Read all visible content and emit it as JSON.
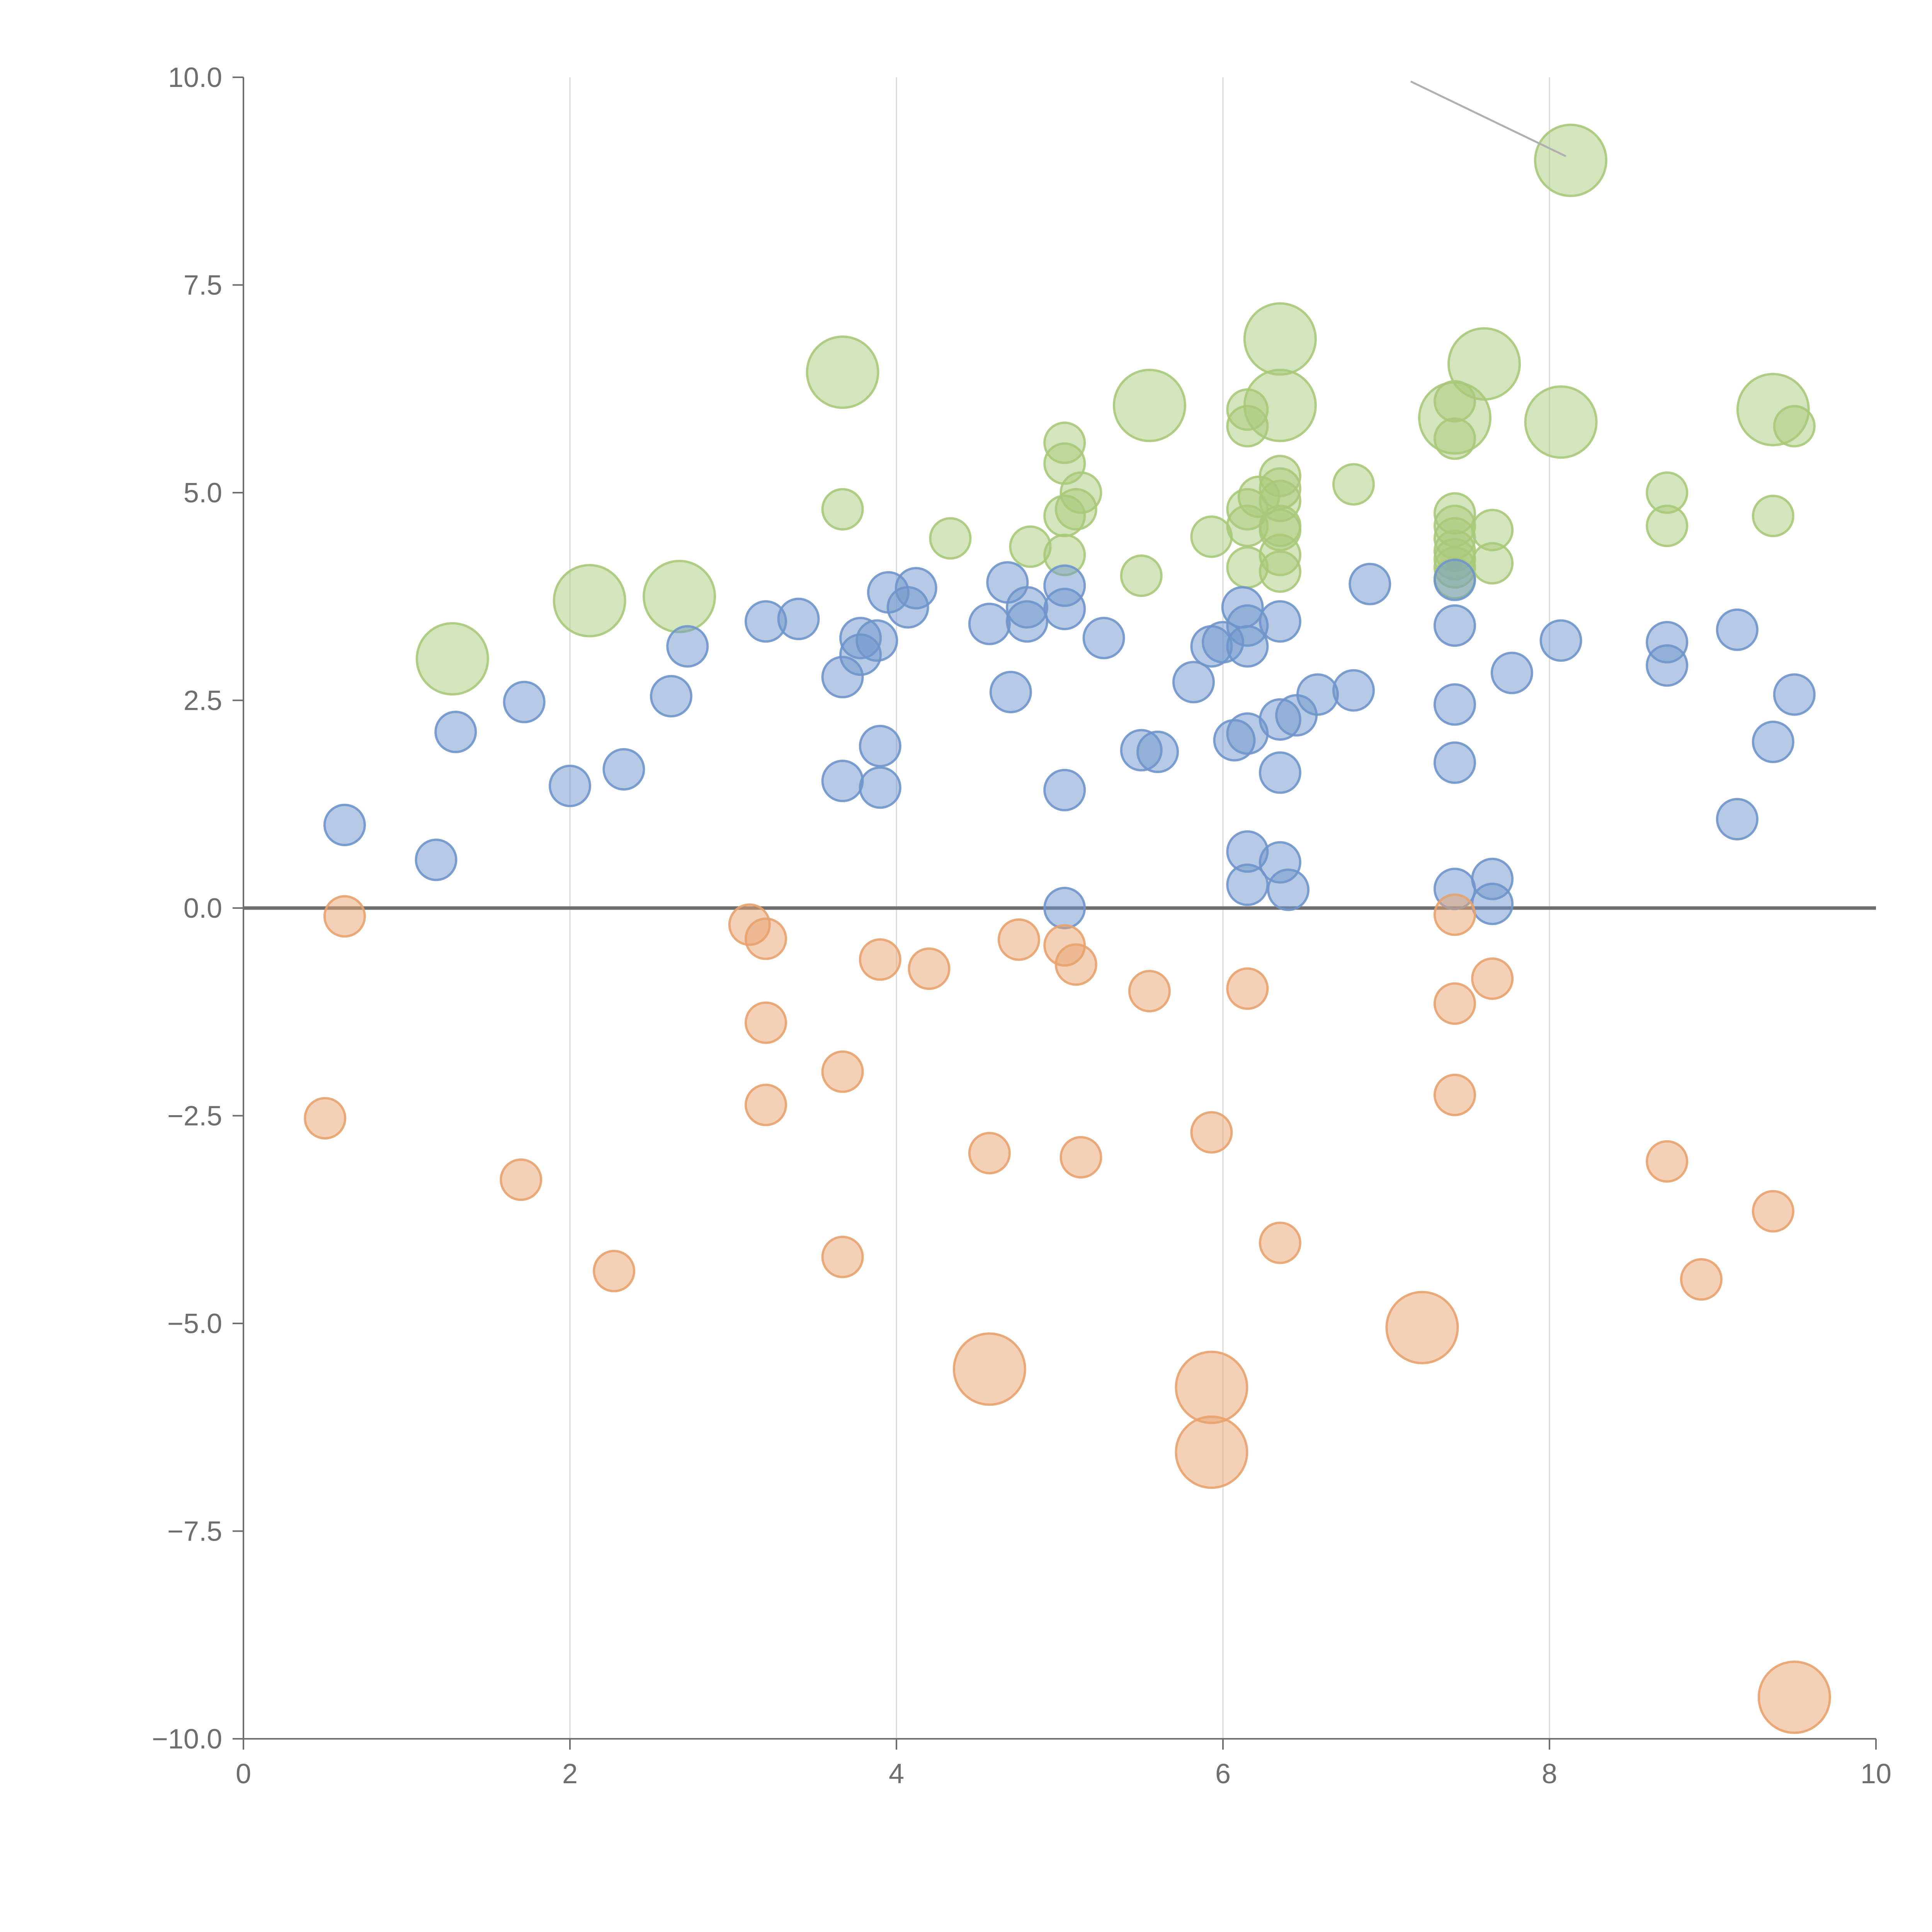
{
  "chart_data": {
    "type": "scatter",
    "title": "",
    "xlabel": "",
    "ylabel": "",
    "xlim": [
      0,
      10
    ],
    "ylim": [
      -10,
      10
    ],
    "x_ticks": [
      "0",
      "2",
      "4",
      "6",
      "8",
      "10"
    ],
    "y_ticks": [
      "10.0",
      "7.5",
      "5.0",
      "2.5",
      "0.0",
      "−2.5",
      "−5.0",
      "−7.5",
      "−10.0"
    ],
    "x_tick_values": [
      0,
      2,
      4,
      6,
      8,
      10
    ],
    "y_tick_values": [
      10,
      7.5,
      5,
      2.5,
      0,
      -2.5,
      -5,
      -7.5,
      -10
    ],
    "grid": {
      "x": true,
      "y": false
    },
    "reference_line_y": 0,
    "colors": {
      "green": "#a9c97a",
      "blue": "#6f95cb",
      "orange": "#e8a26e"
    },
    "annotation_line": {
      "from": [
        7.15,
        9.95
      ],
      "to": [
        8.1,
        9.05
      ]
    },
    "series": [
      {
        "color": "green",
        "points": [
          [
            8.13,
            9.0,
            2
          ],
          [
            6.35,
            6.85,
            2
          ],
          [
            7.6,
            6.55,
            2
          ],
          [
            3.67,
            6.45,
            2
          ],
          [
            5.55,
            6.05,
            2
          ],
          [
            6.35,
            6.05,
            2
          ],
          [
            9.37,
            6.0,
            2
          ],
          [
            7.42,
            5.9,
            2
          ],
          [
            8.07,
            5.85,
            2
          ],
          [
            7.42,
            6.1,
            1
          ],
          [
            6.15,
            6.0,
            1
          ],
          [
            6.15,
            5.8,
            1
          ],
          [
            9.5,
            5.8,
            1
          ],
          [
            5.03,
            5.6,
            1
          ],
          [
            7.42,
            5.65,
            1
          ],
          [
            5.03,
            5.35,
            1
          ],
          [
            6.35,
            5.2,
            1
          ],
          [
            6.8,
            5.1,
            1
          ],
          [
            6.35,
            5.05,
            1
          ],
          [
            5.13,
            5.0,
            1
          ],
          [
            6.22,
            4.95,
            1
          ],
          [
            8.72,
            5.0,
            1
          ],
          [
            6.35,
            4.9,
            1
          ],
          [
            6.15,
            4.8,
            1
          ],
          [
            3.67,
            4.8,
            1
          ],
          [
            5.1,
            4.8,
            1
          ],
          [
            5.03,
            4.72,
            1
          ],
          [
            7.42,
            4.75,
            1
          ],
          [
            9.37,
            4.72,
            1
          ],
          [
            6.15,
            4.6,
            1
          ],
          [
            6.35,
            4.6,
            1
          ],
          [
            7.42,
            4.6,
            1
          ],
          [
            8.72,
            4.6,
            1
          ],
          [
            7.65,
            4.55,
            1
          ],
          [
            6.35,
            4.55,
            1
          ],
          [
            4.33,
            4.45,
            1
          ],
          [
            5.93,
            4.47,
            1
          ],
          [
            4.82,
            4.35,
            1
          ],
          [
            7.42,
            4.45,
            1
          ],
          [
            7.42,
            4.3,
            1
          ],
          [
            5.03,
            4.25,
            1
          ],
          [
            6.35,
            4.25,
            1
          ],
          [
            7.42,
            4.2,
            1
          ],
          [
            7.65,
            4.15,
            1
          ],
          [
            6.15,
            4.1,
            1
          ],
          [
            7.42,
            4.1,
            1
          ],
          [
            5.5,
            4.0,
            1
          ],
          [
            6.35,
            4.05,
            1
          ],
          [
            7.42,
            3.97,
            1
          ],
          [
            2.12,
            3.7,
            2
          ],
          [
            2.67,
            3.75,
            2
          ],
          [
            1.28,
            3.0,
            2
          ]
        ]
      },
      {
        "color": "blue",
        "points": [
          [
            6.9,
            3.9,
            1
          ],
          [
            4.68,
            3.92,
            1
          ],
          [
            5.03,
            3.88,
            1
          ],
          [
            4.12,
            3.85,
            1
          ],
          [
            7.42,
            3.95,
            1
          ],
          [
            3.95,
            3.8,
            1
          ],
          [
            4.07,
            3.62,
            1
          ],
          [
            6.12,
            3.62,
            1
          ],
          [
            4.8,
            3.62,
            1
          ],
          [
            5.03,
            3.6,
            1
          ],
          [
            3.2,
            3.45,
            1
          ],
          [
            3.4,
            3.48,
            1
          ],
          [
            4.57,
            3.42,
            1
          ],
          [
            4.8,
            3.45,
            1
          ],
          [
            6.35,
            3.45,
            1
          ],
          [
            7.42,
            3.4,
            1
          ],
          [
            9.15,
            3.35,
            1
          ],
          [
            6.15,
            3.4,
            1
          ],
          [
            5.27,
            3.25,
            1
          ],
          [
            3.78,
            3.25,
            1
          ],
          [
            3.88,
            3.22,
            1
          ],
          [
            8.07,
            3.22,
            1
          ],
          [
            6.0,
            3.2,
            1
          ],
          [
            8.72,
            3.2,
            1
          ],
          [
            5.93,
            3.15,
            1
          ],
          [
            6.15,
            3.15,
            1
          ],
          [
            2.72,
            3.15,
            1
          ],
          [
            3.78,
            3.05,
            1
          ],
          [
            8.72,
            2.92,
            1
          ],
          [
            7.77,
            2.83,
            1
          ],
          [
            3.67,
            2.78,
            1
          ],
          [
            5.82,
            2.72,
            1
          ],
          [
            6.8,
            2.62,
            1
          ],
          [
            4.7,
            2.6,
            1
          ],
          [
            6.58,
            2.57,
            1
          ],
          [
            9.5,
            2.57,
            1
          ],
          [
            2.62,
            2.55,
            1
          ],
          [
            1.72,
            2.48,
            1
          ],
          [
            7.42,
            2.45,
            1
          ],
          [
            6.45,
            2.32,
            1
          ],
          [
            6.35,
            2.27,
            1
          ],
          [
            1.3,
            2.12,
            1
          ],
          [
            6.15,
            2.1,
            1
          ],
          [
            6.07,
            2.02,
            1
          ],
          [
            9.37,
            2.0,
            1
          ],
          [
            3.9,
            1.95,
            1
          ],
          [
            5.5,
            1.9,
            1
          ],
          [
            5.6,
            1.88,
            1
          ],
          [
            7.42,
            1.75,
            1
          ],
          [
            2.33,
            1.67,
            1
          ],
          [
            6.35,
            1.63,
            1
          ],
          [
            3.67,
            1.53,
            1
          ],
          [
            2.0,
            1.47,
            1
          ],
          [
            3.9,
            1.45,
            1
          ],
          [
            5.03,
            1.42,
            1
          ],
          [
            9.15,
            1.07,
            1
          ],
          [
            0.62,
            1.0,
            1
          ],
          [
            6.15,
            0.68,
            1
          ],
          [
            1.18,
            0.58,
            1
          ],
          [
            6.35,
            0.55,
            1
          ],
          [
            7.65,
            0.35,
            1
          ],
          [
            6.15,
            0.28,
            1
          ],
          [
            7.42,
            0.23,
            1
          ],
          [
            6.4,
            0.22,
            1
          ],
          [
            7.65,
            0.05,
            1
          ],
          [
            5.03,
            0.0,
            1
          ]
        ]
      },
      {
        "color": "orange",
        "points": [
          [
            0.62,
            -0.1,
            1
          ],
          [
            7.42,
            -0.08,
            1
          ],
          [
            3.1,
            -0.2,
            1
          ],
          [
            3.2,
            -0.37,
            1
          ],
          [
            4.75,
            -0.38,
            1
          ],
          [
            5.03,
            -0.45,
            1
          ],
          [
            3.9,
            -0.62,
            1
          ],
          [
            5.1,
            -0.68,
            1
          ],
          [
            4.2,
            -0.73,
            1
          ],
          [
            7.65,
            -0.85,
            1
          ],
          [
            6.15,
            -0.97,
            1
          ],
          [
            5.55,
            -1.0,
            1
          ],
          [
            7.42,
            -1.15,
            1
          ],
          [
            3.2,
            -1.38,
            1
          ],
          [
            3.67,
            -1.97,
            1
          ],
          [
            7.42,
            -2.25,
            1
          ],
          [
            3.2,
            -2.37,
            1
          ],
          [
            0.5,
            -2.53,
            1
          ],
          [
            5.93,
            -2.7,
            1
          ],
          [
            4.57,
            -2.95,
            1
          ],
          [
            5.13,
            -3.0,
            1
          ],
          [
            8.72,
            -3.05,
            1
          ],
          [
            1.7,
            -3.27,
            1
          ],
          [
            9.37,
            -3.65,
            1
          ],
          [
            6.35,
            -4.03,
            1
          ],
          [
            3.67,
            -4.2,
            1
          ],
          [
            2.27,
            -4.37,
            1
          ],
          [
            8.93,
            -4.47,
            1
          ],
          [
            7.22,
            -5.05,
            2
          ],
          [
            4.57,
            -5.55,
            2
          ],
          [
            5.93,
            -5.77,
            2
          ],
          [
            5.93,
            -6.55,
            2
          ],
          [
            9.5,
            -9.5,
            2
          ]
        ]
      }
    ]
  }
}
